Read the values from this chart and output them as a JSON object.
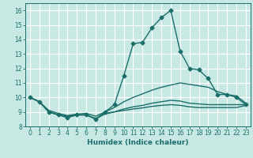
{
  "background_color": "#c8e8e4",
  "grid_color": "#ffffff",
  "line_color": "#1a6e6a",
  "xlabel": "Humidex (Indice chaleur)",
  "xlim": [
    -0.5,
    23.5
  ],
  "ylim": [
    8.0,
    16.5
  ],
  "yticks": [
    8,
    9,
    10,
    11,
    12,
    13,
    14,
    15,
    16
  ],
  "xticks": [
    0,
    1,
    2,
    3,
    4,
    5,
    6,
    7,
    8,
    9,
    10,
    11,
    12,
    13,
    14,
    15,
    16,
    17,
    18,
    19,
    20,
    21,
    22,
    23
  ],
  "lines": [
    {
      "x": [
        0,
        1,
        2,
        3,
        4,
        5,
        6,
        7,
        8,
        9,
        10,
        11,
        12,
        13,
        14,
        15,
        16,
        17,
        18,
        19,
        20,
        21,
        22,
        23
      ],
      "y": [
        10.0,
        9.7,
        9.0,
        8.8,
        8.6,
        8.8,
        8.8,
        8.5,
        9.0,
        9.5,
        11.5,
        13.7,
        13.8,
        14.8,
        15.5,
        16.0,
        13.2,
        12.0,
        11.9,
        11.3,
        10.2,
        10.2,
        10.0,
        9.5
      ],
      "marker": "D",
      "markersize": 2.5,
      "linewidth": 1.0,
      "has_marker": true
    },
    {
      "x": [
        0,
        1,
        2,
        3,
        4,
        5,
        6,
        7,
        8,
        9,
        10,
        11,
        12,
        13,
        14,
        15,
        16,
        17,
        18,
        19,
        20,
        21,
        22,
        23
      ],
      "y": [
        10.0,
        9.7,
        9.1,
        8.9,
        8.75,
        8.85,
        8.9,
        8.7,
        9.0,
        9.3,
        9.7,
        10.0,
        10.25,
        10.5,
        10.7,
        10.85,
        11.0,
        10.9,
        10.8,
        10.7,
        10.4,
        10.2,
        10.1,
        9.6
      ],
      "marker": null,
      "markersize": 0,
      "linewidth": 1.0,
      "has_marker": false
    },
    {
      "x": [
        0,
        1,
        2,
        3,
        4,
        5,
        6,
        7,
        8,
        9,
        10,
        11,
        12,
        13,
        14,
        15,
        16,
        17,
        18,
        19,
        20,
        21,
        22,
        23
      ],
      "y": [
        10.0,
        9.7,
        9.0,
        8.8,
        8.7,
        8.8,
        8.8,
        8.5,
        8.9,
        9.0,
        9.2,
        9.35,
        9.45,
        9.6,
        9.7,
        9.8,
        9.75,
        9.6,
        9.55,
        9.5,
        9.5,
        9.5,
        9.5,
        9.5
      ],
      "marker": null,
      "markersize": 0,
      "linewidth": 1.0,
      "has_marker": false
    },
    {
      "x": [
        0,
        1,
        2,
        3,
        4,
        5,
        6,
        7,
        8,
        9,
        10,
        11,
        12,
        13,
        14,
        15,
        16,
        17,
        18,
        19,
        20,
        21,
        22,
        23
      ],
      "y": [
        10.0,
        9.7,
        9.0,
        8.8,
        8.65,
        8.78,
        8.78,
        8.55,
        8.85,
        9.0,
        9.1,
        9.2,
        9.28,
        9.38,
        9.45,
        9.5,
        9.45,
        9.35,
        9.3,
        9.3,
        9.3,
        9.3,
        9.3,
        9.45
      ],
      "marker": null,
      "markersize": 0,
      "linewidth": 1.0,
      "has_marker": false
    }
  ]
}
